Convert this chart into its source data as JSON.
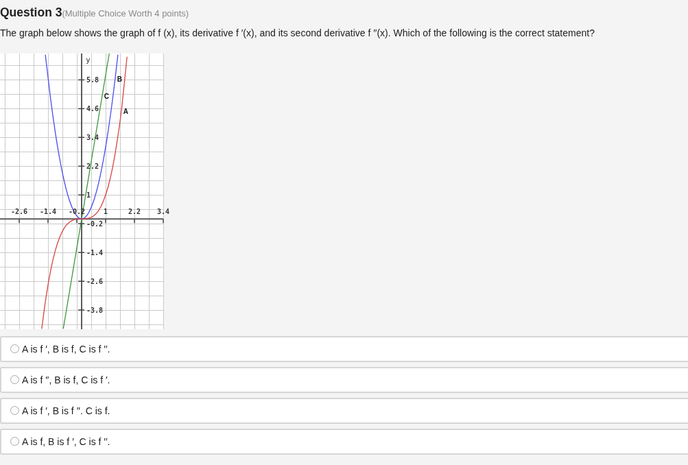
{
  "chart_data": {
    "type": "line",
    "title": "Question 3",
    "subtitle": "(Multiple Choice Worth 4 points)",
    "ylabel": "y",
    "annotations": [
      "The graph below shows the graph of f (x), its derivative f ′(x), and its second derivative f ′′(x). Which of the following is the correct statement?",
      "A is f ′, B is f, C is f ′′.",
      "A is f ′′, B is f, C is f ′.",
      "A is f ′, B is f ′′. C is f.",
      "A is f, B is f ′, C is f ′′.",
      {
        "text": "A",
        "x": 1.65,
        "y": 4.46
      },
      {
        "text": "B",
        "x": 1.39,
        "y": 5.8
      },
      {
        "text": "C",
        "x": 0.85,
        "y": 5.1
      }
    ],
    "series": [
      {
        "color": "#d94444",
        "x": [
          -1.66,
          -1.5,
          -1.3,
          -1.1,
          -0.9,
          -0.7,
          -0.5,
          -0.3,
          0,
          0.3,
          0.5,
          0.7,
          0.9,
          1.1,
          1.3,
          1.5,
          1.65,
          1.89
        ],
        "values": [
          -4.57,
          -3.38,
          -2.2,
          -1.33,
          -0.73,
          -0.34,
          -0.13,
          -0.03,
          0,
          0.03,
          0.13,
          0.34,
          0.73,
          1.33,
          2.2,
          3.38,
          4.46,
          6.75
        ]
      },
      {
        "color": "#4a4af0",
        "x": [
          -1.51,
          -1.3,
          -1.1,
          -0.9,
          -0.7,
          -0.5,
          -0.3,
          -0.15,
          0,
          0.15,
          0.3,
          0.5,
          0.7,
          0.9,
          1.1,
          1.3,
          1.39,
          1.51
        ],
        "values": [
          6.84,
          5.07,
          3.63,
          2.43,
          1.47,
          0.75,
          0.27,
          0.07,
          0,
          0.07,
          0.27,
          0.75,
          1.47,
          2.43,
          3.63,
          5.07,
          5.8,
          6.84
        ]
      },
      {
        "color": "#3d973d",
        "x": [
          -0.76,
          1.15
        ],
        "values": [
          -4.56,
          6.9
        ]
      }
    ],
    "xlim": [
      -3.4,
      3.4
    ],
    "ylim": [
      -4.6,
      6.9
    ],
    "xticks": [
      {
        "value": -3.2,
        "label": null
      },
      -2.6,
      {
        "value": -2,
        "label": null
      },
      -1.4,
      {
        "value": -0.8,
        "label": null
      },
      -0.2,
      {
        "value": 0.4,
        "label": null
      },
      1,
      {
        "value": 1.6,
        "label": null
      },
      2.2,
      {
        "value": 2.8,
        "label": null
      },
      3.4
    ],
    "yticks": [
      {
        "value": 6.4,
        "label": null
      },
      5.8,
      {
        "value": 5.2,
        "label": null
      },
      4.6,
      {
        "value": 4,
        "label": null
      },
      3.4,
      {
        "value": 2.8,
        "label": null
      },
      2.2,
      {
        "value": 1.6,
        "label": null
      },
      1,
      {
        "value": 0.4,
        "label": null
      },
      -0.2,
      {
        "value": -0.8,
        "label": null
      },
      -1.4,
      {
        "value": -2,
        "label": null
      },
      -2.6,
      {
        "value": -3.2,
        "label": null
      },
      -3.8,
      {
        "value": -4.4,
        "label": null
      }
    ],
    "grid": true
  }
}
